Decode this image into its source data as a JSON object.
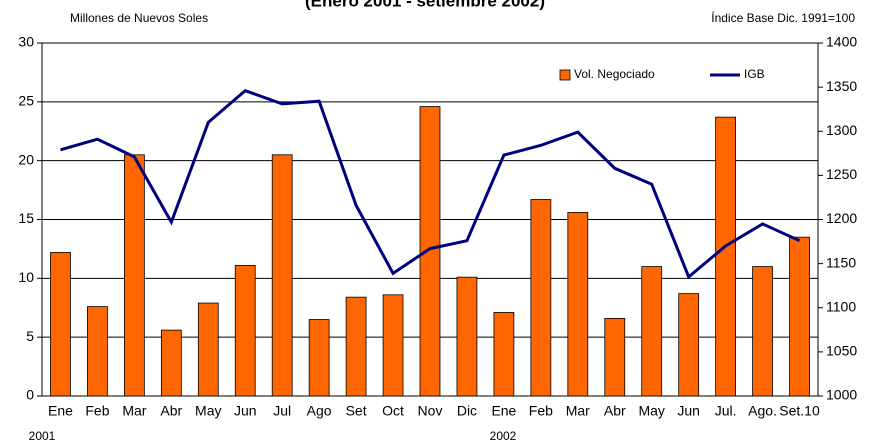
{
  "chart_data": {
    "type": "bar-line",
    "title": "(Enero 2001 - setiembre 2002)",
    "y_label": "Millones de Nuevos Soles",
    "y2_label": "Índice Base Dic. 1991=100",
    "annotations": [
      "2001",
      "2002"
    ],
    "categories": [
      "Ene",
      "Feb",
      "Mar",
      "Abr",
      "May",
      "Jun",
      "Jul",
      "Ago",
      "Set",
      "Oct",
      "Nov",
      "Dic",
      "Ene",
      "Feb",
      "Mar",
      "Abr",
      "May",
      "Jun",
      "Jul.",
      "Ago.",
      "Set.10"
    ],
    "series": [
      {
        "name": "Vol. Negociado",
        "type": "bar",
        "color": "#ff6600",
        "values": [
          12.2,
          7.6,
          20.5,
          5.6,
          7.9,
          11.1,
          20.5,
          6.5,
          8.4,
          8.6,
          24.6,
          10.1,
          7.1,
          16.7,
          15.6,
          6.6,
          11.0,
          8.7,
          23.7,
          11.0,
          13.5
        ]
      },
      {
        "name": "IGB",
        "type": "line",
        "axis": "y2",
        "color": "#000080",
        "values": [
          1279,
          1291,
          1271,
          1197,
          1310,
          1346,
          1331,
          1334,
          1216,
          1139,
          1167,
          1176,
          1273,
          1284,
          1299,
          1258,
          1240,
          1135,
          1170,
          1195,
          1176
        ]
      }
    ],
    "ylim": [
      0,
      30
    ],
    "yticks": [
      0,
      5,
      10,
      15,
      20,
      25,
      30
    ],
    "y2lim": [
      1000,
      1400
    ],
    "y2ticks": [
      1000,
      1050,
      1100,
      1150,
      1200,
      1250,
      1300,
      1350,
      1400
    ],
    "grid": true,
    "legend": "top-right"
  }
}
